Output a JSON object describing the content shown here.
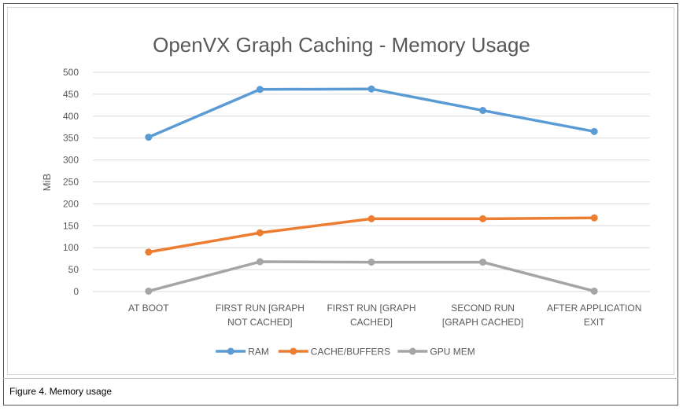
{
  "caption": "Figure 4.  Memory usage",
  "chart_data": {
    "type": "line",
    "title": "OpenVX Graph Caching - Memory Usage",
    "ylabel": "MiB",
    "xlabel": "",
    "ylim": [
      0,
      500
    ],
    "yticks": [
      0,
      50,
      100,
      150,
      200,
      250,
      300,
      350,
      400,
      450,
      500
    ],
    "grid": true,
    "legend": "bottom",
    "categories": [
      [
        "AT BOOT"
      ],
      [
        "FIRST RUN [GRAPH",
        "NOT CACHED]"
      ],
      [
        "FIRST RUN [GRAPH",
        "CACHED]"
      ],
      [
        "SECOND RUN",
        "[GRAPH CACHED]"
      ],
      [
        "AFTER APPLICATION",
        "EXIT"
      ]
    ],
    "series": [
      {
        "name": "RAM",
        "color": "#5b9bd5",
        "values": [
          352,
          461,
          462,
          413,
          365
        ]
      },
      {
        "name": "CACHE/BUFFERS",
        "color": "#ed7d31",
        "values": [
          90,
          134,
          166,
          166,
          168
        ]
      },
      {
        "name": "GPU MEM",
        "color": "#a5a5a5",
        "values": [
          1,
          68,
          67,
          67,
          1
        ]
      }
    ]
  }
}
